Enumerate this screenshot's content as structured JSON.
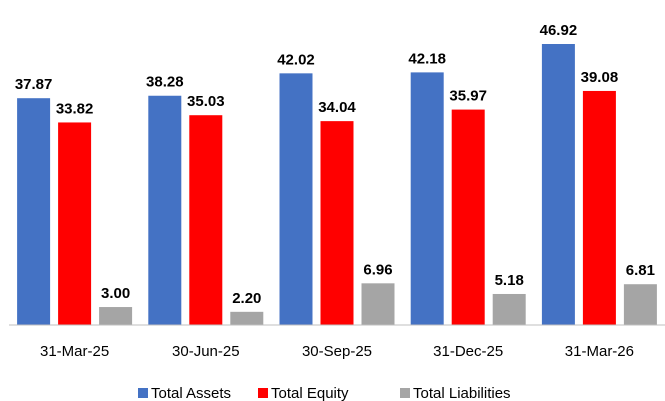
{
  "chart_data": {
    "type": "bar",
    "categories": [
      "31-Mar-25",
      "30-Jun-25",
      "30-Sep-25",
      "31-Dec-25",
      "31-Mar-26"
    ],
    "series": [
      {
        "name": "Total Assets",
        "color": "#4472c4",
        "values": [
          37.87,
          38.28,
          42.02,
          42.18,
          46.92
        ],
        "value_labels": [
          "37.87",
          "38.28",
          "42.02",
          "42.18",
          "46.92"
        ]
      },
      {
        "name": "Total Equity",
        "color": "#ff0000",
        "values": [
          33.82,
          35.03,
          34.04,
          35.97,
          39.08
        ],
        "value_labels": [
          "33.82",
          "35.03",
          "34.04",
          "35.97",
          "39.08"
        ]
      },
      {
        "name": "Total Liabilities",
        "color": "#a5a5a5",
        "values": [
          3.0,
          2.2,
          6.96,
          5.18,
          6.81
        ],
        "value_labels": [
          "3.00",
          "2.20",
          "6.96",
          "5.18",
          "6.81"
        ]
      }
    ],
    "legend": "bottom"
  }
}
